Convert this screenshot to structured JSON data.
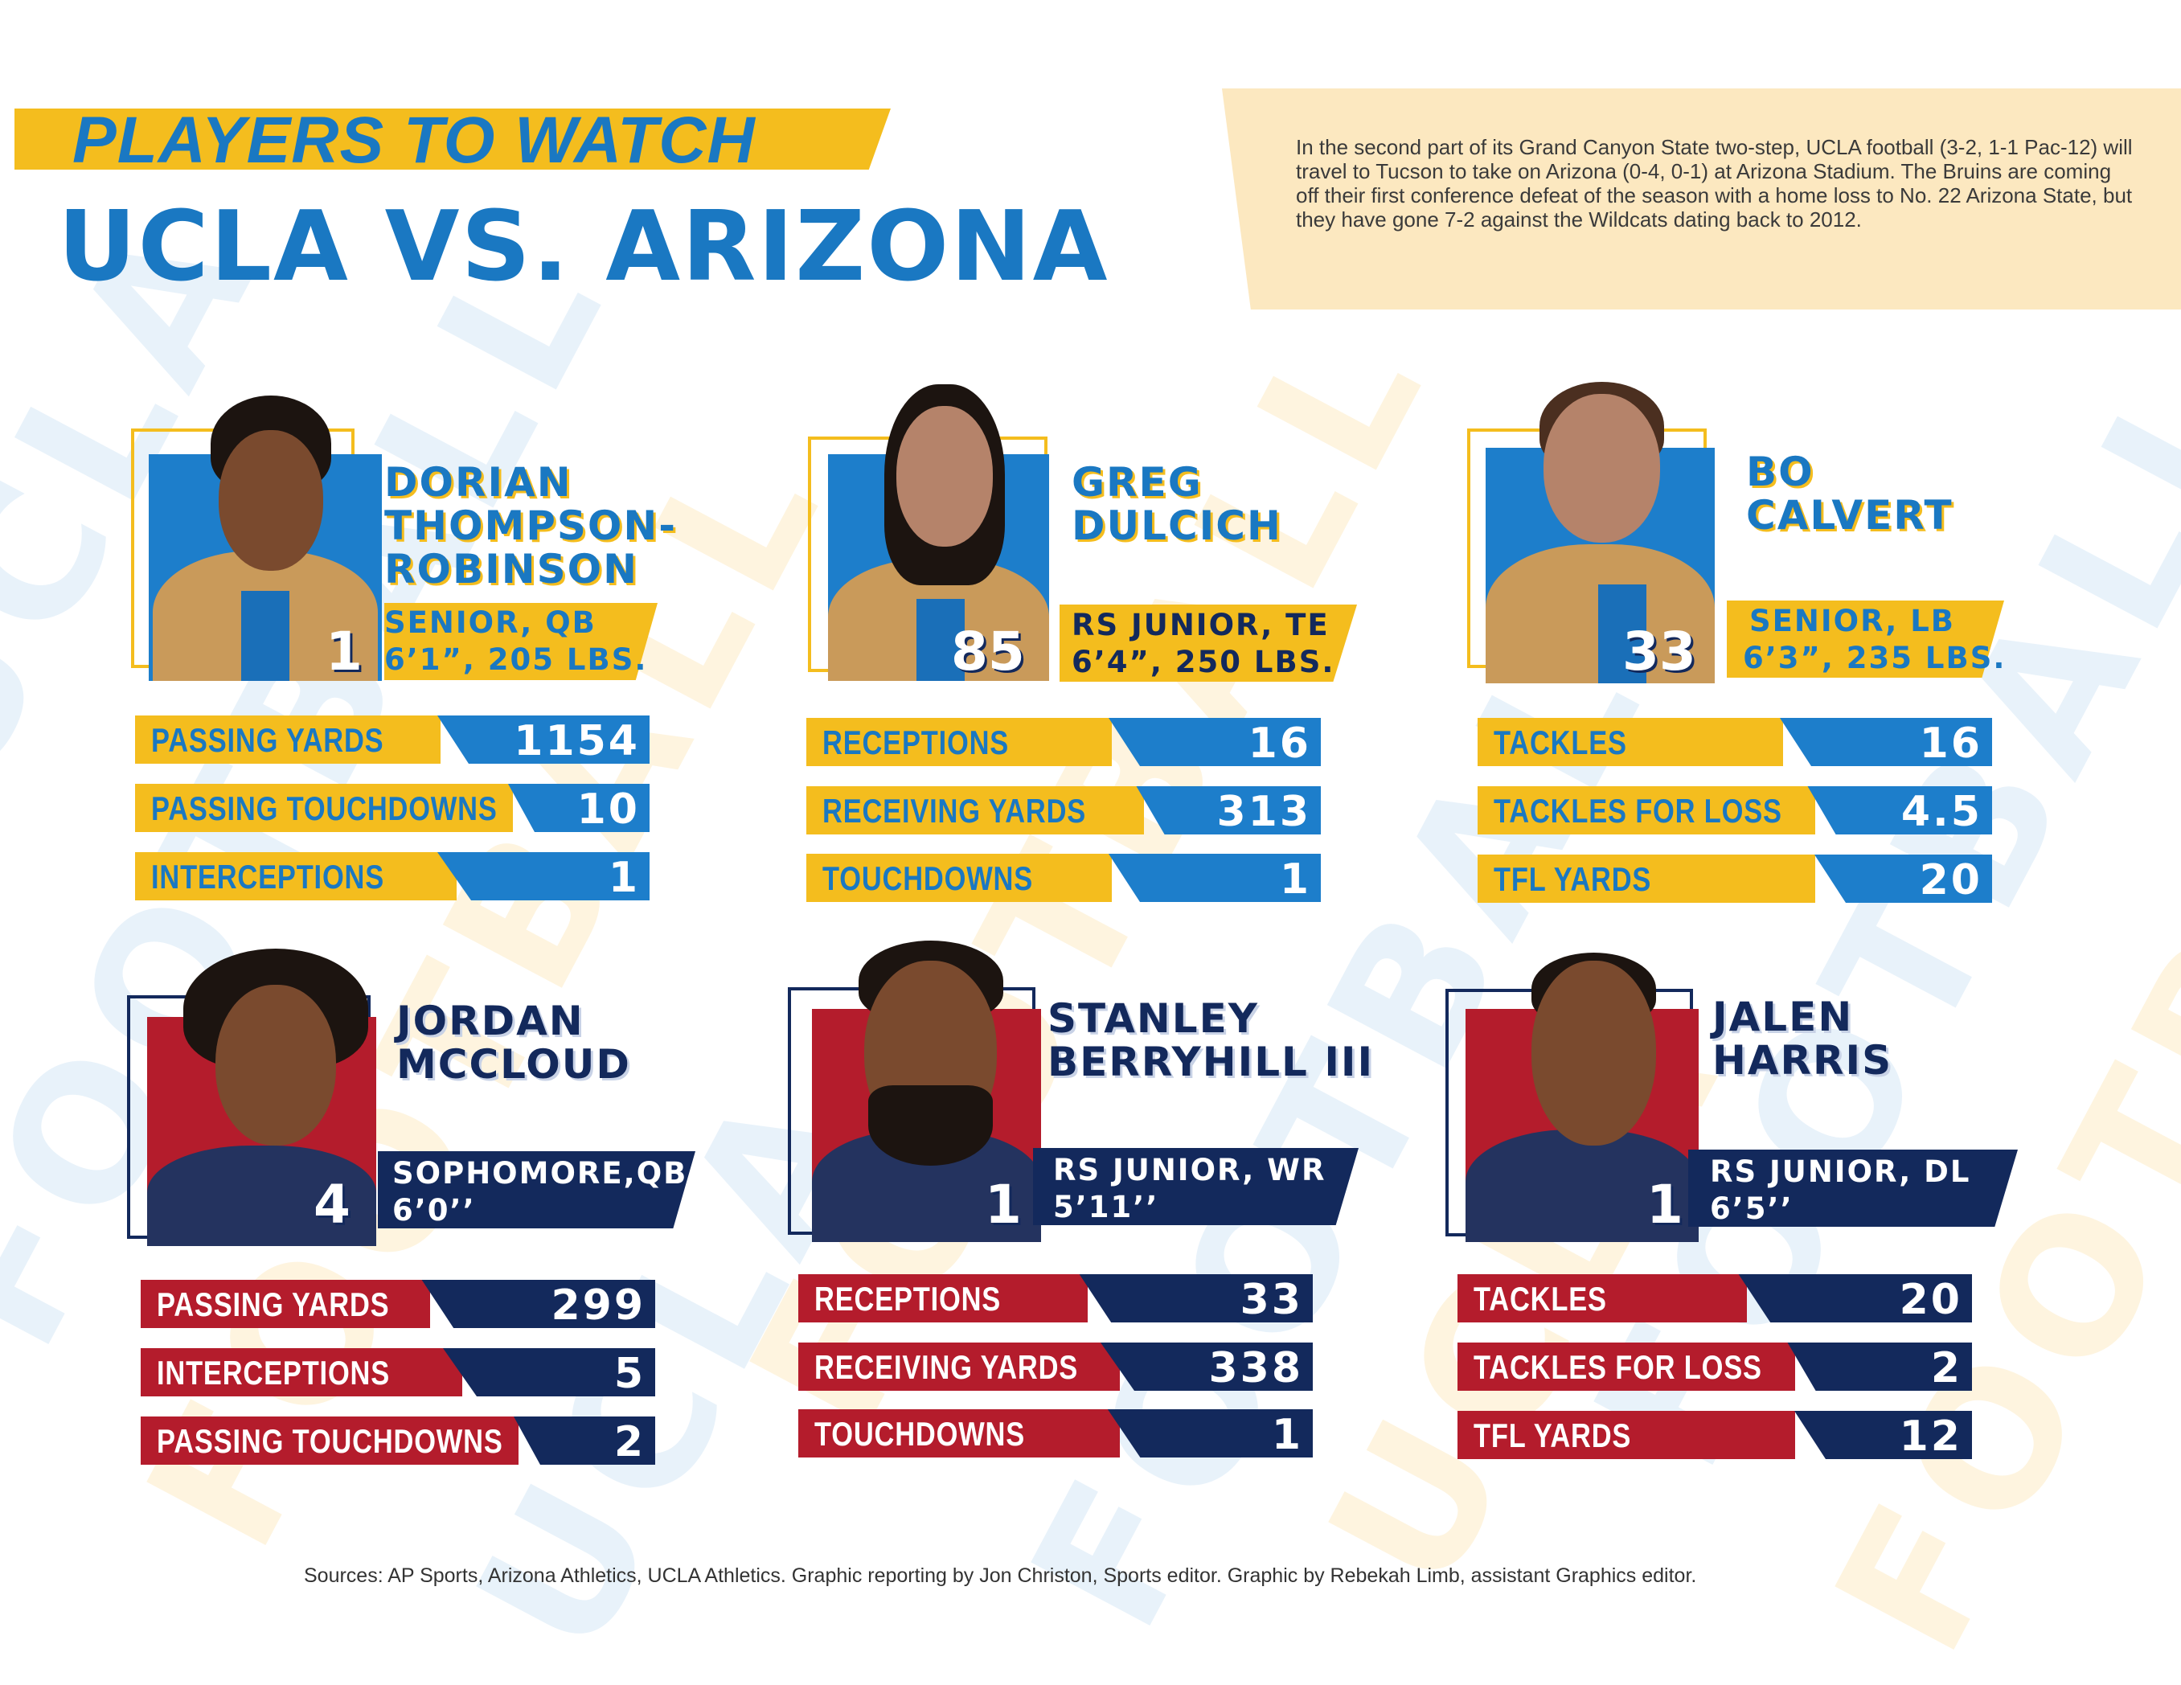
{
  "header": {
    "kicker": "PLAYERS TO WATCH",
    "title": "UCLA VS. ARIZONA"
  },
  "intro": "In the second part of its Grand Canyon State two-step, UCLA football (3-2, 1-1 Pac-12) will travel to Tucson to take on Arizona (0-4, 0-1) at Arizona Stadium. The Bruins are coming off their first conference defeat of the season with a home loss to No. 22 Arizona State, but they have gone 7-2 against the Wildcats dating back to 2012.",
  "background": {
    "word_ucla": "UCLA",
    "word_football": "FOOTBALL"
  },
  "players": [
    {
      "team": "UCLA",
      "number": "1",
      "name_lines": [
        "DORIAN",
        "THOMPSON-",
        "ROBINSON"
      ],
      "position": "SENIOR, QB",
      "size": "6’1”, 205 LBS.",
      "stats": [
        {
          "label": "PASSING YARDS",
          "value": "1154"
        },
        {
          "label": "PASSING TOUCHDOWNS",
          "value": "10"
        },
        {
          "label": "INTERCEPTIONS",
          "value": "1"
        }
      ]
    },
    {
      "team": "UCLA",
      "number": "85",
      "name_lines": [
        "GREG",
        "DULCICH"
      ],
      "position": "RS JUNIOR, TE",
      "size": "6’4”, 250 LBS.",
      "stats": [
        {
          "label": "RECEPTIONS",
          "value": "16"
        },
        {
          "label": "RECEIVING YARDS",
          "value": "313"
        },
        {
          "label": "TOUCHDOWNS",
          "value": "1"
        }
      ]
    },
    {
      "team": "UCLA",
      "number": "33",
      "name_lines": [
        "BO",
        "CALVERT"
      ],
      "position": "SENIOR, LB",
      "size": "6’3”, 235 LBS.",
      "stats": [
        {
          "label": "TACKLES",
          "value": "16"
        },
        {
          "label": "TACKLES FOR LOSS",
          "value": "4.5"
        },
        {
          "label": "TFL YARDS",
          "value": "20"
        }
      ]
    },
    {
      "team": "Arizona",
      "number": "4",
      "name_lines": [
        "JORDAN",
        "MCCLOUD"
      ],
      "position": "SOPHOMORE,QB",
      "size": "6’0’’",
      "stats": [
        {
          "label": "PASSING YARDS",
          "value": "299"
        },
        {
          "label": "INTERCEPTIONS",
          "value": "5"
        },
        {
          "label": "PASSING TOUCHDOWNS",
          "value": "2"
        }
      ]
    },
    {
      "team": "Arizona",
      "number": "1",
      "name_lines": [
        "STANLEY",
        "BERRYHILL III"
      ],
      "position": "RS JUNIOR, WR",
      "size": "5’11’’",
      "stats": [
        {
          "label": "RECEPTIONS",
          "value": "33"
        },
        {
          "label": "RECEIVING YARDS",
          "value": "338"
        },
        {
          "label": "TOUCHDOWNS",
          "value": "1"
        }
      ]
    },
    {
      "team": "Arizona",
      "number": "1",
      "name_lines": [
        "JALEN",
        "HARRIS"
      ],
      "position": "RS JUNIOR, DL",
      "size": "6’5’’",
      "stats": [
        {
          "label": "TACKLES",
          "value": "20"
        },
        {
          "label": "TACKLES FOR LOSS",
          "value": "2"
        },
        {
          "label": "TFL YARDS",
          "value": "12"
        }
      ]
    }
  ],
  "sources": "Sources: AP Sports, Arizona Athletics, UCLA Athletics. Graphic reporting by Jon Christon, Sports editor. Graphic by Rebekah Limb, assistant Graphics editor.",
  "colors": {
    "ucla_blue": "#1a78c2",
    "ucla_gold": "#f4bd1e",
    "az_red": "#b41c2c",
    "az_navy": "#13295c"
  }
}
